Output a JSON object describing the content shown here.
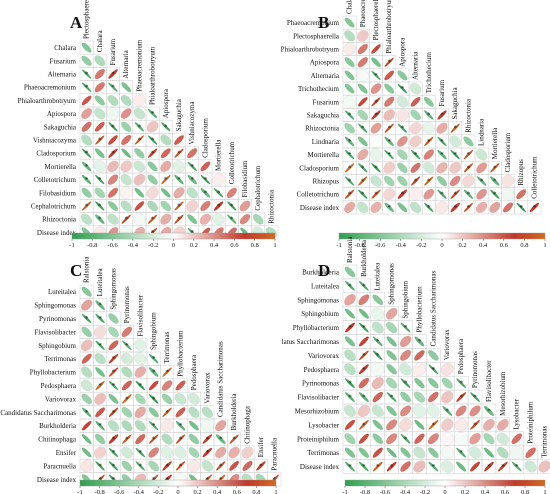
{
  "chart_data": [
    {
      "type": "heatmap",
      "panel": "A",
      "variables": [
        "Plectosphaerella",
        "Chalara",
        "Fusarium",
        "Alternaria",
        "Phaeoacremonium",
        "Phialoarthrobotryum",
        "Apiospora",
        "Sakaguchia",
        "Vishniacozyma",
        "Cladosporium",
        "Mortierella",
        "Colletotrichum",
        "Filobasidium",
        "Cephalotrichum",
        "Rhizoctonia",
        "Disease index"
      ],
      "row_labels": [
        "Chalara",
        "Fusarium",
        "Alternaria",
        "Phaeoacremonium",
        "Phialoarthrobotryum",
        "Apiospora",
        "Sakaguchia",
        "Vishniacozyma",
        "Cladosporium",
        "Mortierella",
        "Colletotrichum",
        "Filobasidium",
        "Cephalotrichum",
        "Rhizoctonia",
        "Disease index"
      ],
      "col_labels": [
        "Plectosphaerella",
        "Chalara",
        "Fusarium",
        "Alternaria",
        "Phaeoacremonium",
        "Phialoarthrobotryum",
        "Apiospora",
        "Sakaguchia",
        "Vishniacozyma",
        "Cladosporium",
        "Mortierella",
        "Colletotrichum",
        "Filobasidium",
        "Cephalotrichum",
        "Rhizoctonia"
      ],
      "colorbar_ticks": [
        "-1",
        "-0.8",
        "-0.6",
        "-0.4",
        "-0.2",
        "0",
        "0.2",
        "0.4",
        "0.6",
        "0.8",
        "1"
      ],
      "value_range": [
        -1,
        1
      ],
      "seed": 11
    },
    {
      "type": "heatmap",
      "panel": "B",
      "variables": [
        "Chalara",
        "Phaeoacremonium",
        "Plectosphaerella",
        "Phialoarthrobotryum",
        "Apiospora",
        "Alternaria",
        "Trichothecium",
        "Fusarium",
        "Sakaguchia",
        "Rhizoctonia",
        "Lindnaria",
        "Mortierella",
        "Cladosporium",
        "Rhizopus",
        "Colletotrichum",
        "Disease index"
      ],
      "row_labels": [
        "Phaeoacremonium",
        "Plectosphaerella",
        "Phialoarthrobotryum",
        "Apiospora",
        "Alternaria",
        "Trichothecium",
        "Fusarium",
        "Sakaguchia",
        "Rhizoctonia",
        "Lindnaria",
        "Mortierella",
        "Cladosporium",
        "Rhizopus",
        "Colletotrichum",
        "Disease index"
      ],
      "col_labels": [
        "Chalara",
        "Phaeoacremonium",
        "Plectosphaerella",
        "Phialoarthrobotryum",
        "Apiospora",
        "Alternaria",
        "Trichothecium",
        "Fusarium",
        "Sakaguchia",
        "Rhizoctonia",
        "Lindnaria",
        "Mortierella",
        "Cladosporium",
        "Rhizopus",
        "Colletotrichum"
      ],
      "colorbar_ticks": [
        "-1",
        "-0.8",
        "-0.6",
        "-0.4",
        "-0.2",
        "0",
        "0.2",
        "0.4",
        "0.6",
        "0.8",
        "1"
      ],
      "value_range": [
        -1,
        1
      ],
      "seed": 23
    },
    {
      "type": "heatmap",
      "panel": "C",
      "variables": [
        "Ralstonia",
        "Luteitalea",
        "Sphingomonas",
        "Pyrinomonas",
        "Flavisolibacter",
        "Sphingobium",
        "Terrimonas",
        "Phyllobacterium",
        "Pedosphaera",
        "Variovorax",
        "Candidatus Saccharimonas",
        "Burkholderia",
        "Chitinophaga",
        "Ensifer",
        "Paracnuella",
        "Disease index"
      ],
      "row_labels": [
        "Luteitalea",
        "Sphingomonas",
        "Pyrinomonas",
        "Flavisolibacter",
        "Sphingobium",
        "Terrimonas",
        "Phyllobacterium",
        "Pedosphaera",
        "Variovorax",
        "Candidatus Saccharimonas",
        "Burkholderia",
        "Chitinophaga",
        "Ensifer",
        "Paracnuella",
        "Disease index"
      ],
      "col_labels": [
        "Ralstonia",
        "Luteitalea",
        "Sphingomonas",
        "Pyrinomonas",
        "Flavisolibacter",
        "Sphingobium",
        "Terrimonas",
        "Phyllobacterium",
        "Pedosphaera",
        "Variovorax",
        "Candidatus Saccharimonas",
        "Burkholderia",
        "Chitinophaga",
        "Ensifer",
        "Paracnuella"
      ],
      "colorbar_ticks": [
        "-1",
        "-0.8",
        "-0.6",
        "-0.4",
        "-0.2",
        "0",
        "0.2",
        "0.4",
        "0.6",
        "0.8",
        "1"
      ],
      "value_range": [
        -1,
        1
      ],
      "seed": 37
    },
    {
      "type": "heatmap",
      "panel": "D",
      "variables": [
        "Ralstonia",
        "Burkholderia",
        "Luteitalea",
        "Sphingomonas",
        "Sphingobium",
        "Phyllobacterium",
        "latus Saccharimonas",
        "Variovorax",
        "Pedosphaera",
        "Pyrinomonas",
        "Flavisolibacter",
        "Mesorhizobium",
        "Lysobacter",
        "Proteiniphilum",
        "Terrimonas",
        "Disease index"
      ],
      "row_labels": [
        "Burkholderia",
        "Luteitalea",
        "Sphingomonas",
        "Sphingobium",
        "Phyllobacterium",
        "latus Saccharimonas",
        "Variovorax",
        "Pedosphaera",
        "Pyrinomonas",
        "Flavisolibacter",
        "Mesorhizobium",
        "Lysobacter",
        "Proteiniphilum",
        "Terrimonas",
        "Disease index"
      ],
      "col_labels": [
        "Ralstonia",
        "Burkholderia",
        "Luteitalea",
        "Sphingomonas",
        "Sphingobium",
        "Phyllobacterium",
        "Candidatus Saccharimonas",
        "Variovorax",
        "Pedosphaera",
        "Pyrinomonas",
        "Flavisolibacter",
        "Mesorhizobium",
        "Lysobacter",
        "Proteiniphilum",
        "Terrimonas"
      ],
      "colorbar_ticks": [
        "-1",
        "-0.8",
        "-0.6",
        "-0.4",
        "-0.2",
        "0",
        "0.2",
        "0.4",
        "0.6",
        "0.8",
        "1"
      ],
      "value_range": [
        -1,
        1
      ],
      "seed": 53
    }
  ],
  "colors": {
    "negative": "#2e9e4f",
    "neutral": "#ffffff",
    "positive": "#c0392b",
    "strong_positive": "#d2691e",
    "grid": "#cfcfcf"
  }
}
